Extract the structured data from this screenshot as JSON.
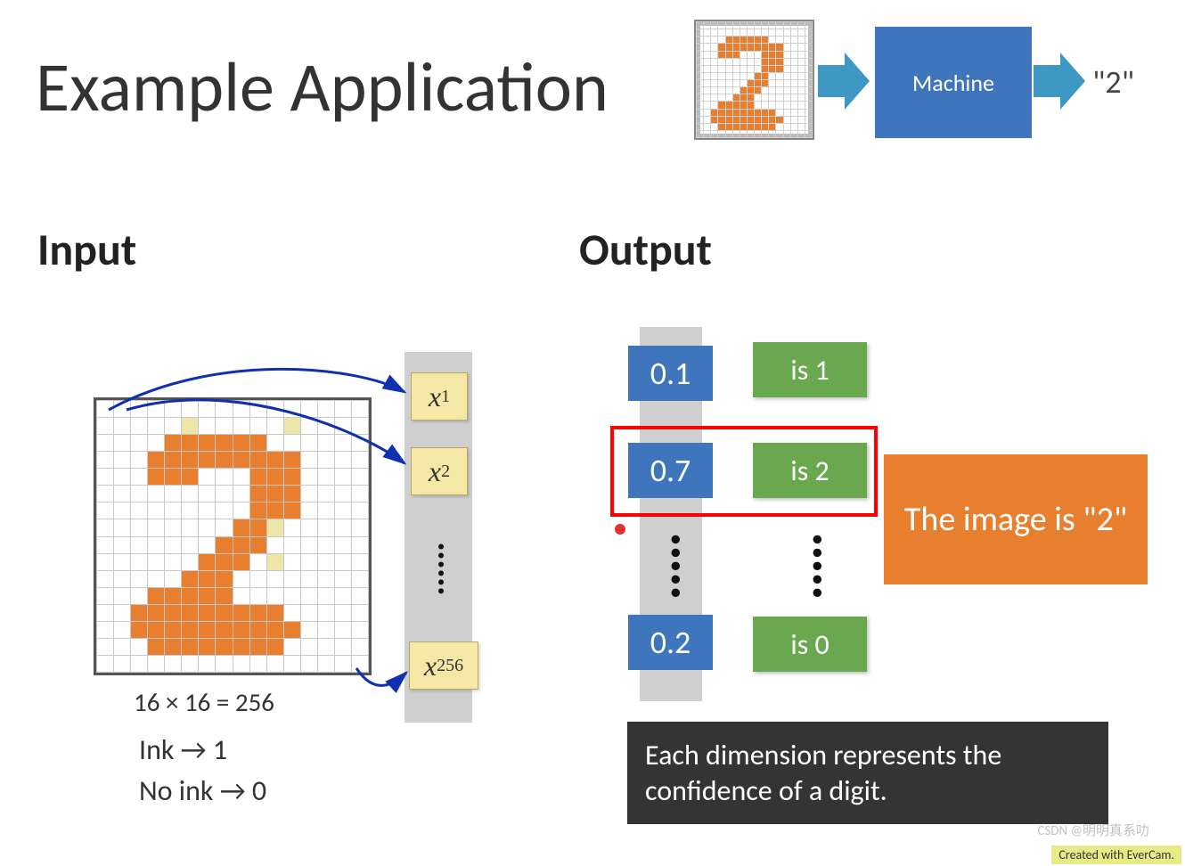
{
  "title": "Example Application",
  "header": {
    "machine_label": "Machine",
    "output_quote": "\"2\"",
    "arrow_color": "#3e98c4",
    "machine_box_color": "#3e75bc"
  },
  "sections": {
    "input_heading": "Input",
    "output_heading": "Output"
  },
  "input": {
    "dim_text": "16 × 16 = 256",
    "ink_rule": "Ink → 1",
    "noink_rule": "No ink → 0",
    "vector_bg": "#cfcfcf",
    "x_box_color": "#f5e8a6",
    "arrow_color": "#1030b0",
    "x_labels": [
      {
        "var": "x",
        "sub": "1"
      },
      {
        "var": "x",
        "sub": "2"
      },
      {
        "var": "x",
        "sub": "256"
      }
    ]
  },
  "digit_grid": {
    "size": 16,
    "cell_filled_color": "#e77f2f",
    "cell_partial_color": "#ece7a8",
    "grid_line_color": "#c8c8c8",
    "pattern": [
      "................",
      ".....y.....y....",
      "....ffffff......",
      "...fffffffff....",
      "...fff...fff....",
      ".........fff....",
      ".........fff....",
      "........ffy.....",
      ".......fff......",
      "......fff.y.....",
      ".....fff........",
      "...fffff........",
      "..fffffffff.....",
      "..ffffffffff....",
      "...ffffffff.....",
      "................"
    ]
  },
  "output": {
    "column_bg": "#cfcfcf",
    "blue_color": "#3e75bc",
    "green_color": "#6aa84f",
    "highlight_border_color": "#ff0000",
    "highlight_index": 1,
    "rows": [
      {
        "value": "0.1",
        "label": "is 1"
      },
      {
        "value": "0.7",
        "label": "is 2"
      },
      {
        "value": "0.2",
        "label": "is 0"
      }
    ],
    "verdict_box_color": "#e77f2f",
    "verdict_text": "The image is  \"2\"",
    "caption_bg": "#343434",
    "caption_text": "Each dimension represents the confidence of a digit."
  },
  "footer": {
    "watermark": "CSDN @明明真系叻",
    "evercam": "Created with EverCam."
  }
}
